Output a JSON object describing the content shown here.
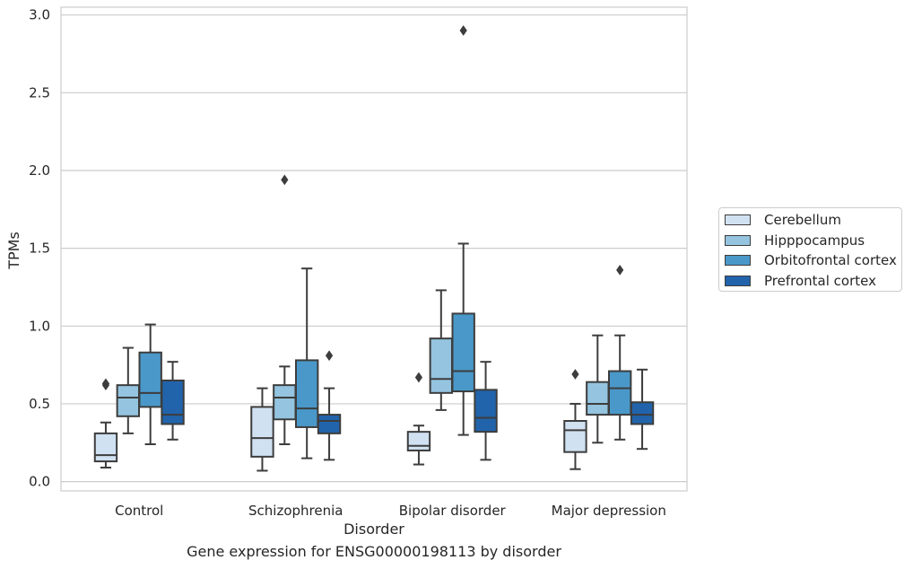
{
  "caption": "Gene expression for ENSG00000198113 by disorder",
  "chart_data": {
    "type": "box",
    "xlabel": "Disorder",
    "ylabel": "TPMs",
    "ylim": [
      -0.06,
      3.05
    ],
    "yticks": [
      "0.0",
      "0.5",
      "1.0",
      "1.5",
      "2.0",
      "2.5",
      "3.0"
    ],
    "grid": true,
    "legend_position": "right",
    "categories": [
      "Control",
      "Schizophrenia",
      "Bipolar disorder",
      "Major depression"
    ],
    "series": [
      {
        "name": "Cerebellum",
        "color": "#d0e1f2",
        "boxes": [
          {
            "whisker_low": 0.09,
            "q1": 0.13,
            "median": 0.17,
            "q3": 0.31,
            "whisker_high": 0.38,
            "outliers": [
              0.62,
              0.63
            ]
          },
          {
            "whisker_low": 0.07,
            "q1": 0.16,
            "median": 0.28,
            "q3": 0.48,
            "whisker_high": 0.6,
            "outliers": []
          },
          {
            "whisker_low": 0.11,
            "q1": 0.2,
            "median": 0.23,
            "q3": 0.32,
            "whisker_high": 0.36,
            "outliers": [
              0.67
            ]
          },
          {
            "whisker_low": 0.08,
            "q1": 0.19,
            "median": 0.33,
            "q3": 0.39,
            "whisker_high": 0.5,
            "outliers": [
              0.69
            ]
          }
        ]
      },
      {
        "name": "Hipppocampus",
        "color": "#94c4df",
        "boxes": [
          {
            "whisker_low": 0.31,
            "q1": 0.42,
            "median": 0.54,
            "q3": 0.62,
            "whisker_high": 0.86,
            "outliers": []
          },
          {
            "whisker_low": 0.24,
            "q1": 0.4,
            "median": 0.54,
            "q3": 0.62,
            "whisker_high": 0.74,
            "outliers": [
              1.94
            ]
          },
          {
            "whisker_low": 0.46,
            "q1": 0.57,
            "median": 0.66,
            "q3": 0.92,
            "whisker_high": 1.23,
            "outliers": []
          },
          {
            "whisker_low": 0.25,
            "q1": 0.43,
            "median": 0.5,
            "q3": 0.64,
            "whisker_high": 0.94,
            "outliers": []
          }
        ]
      },
      {
        "name": "Orbitofrontal cortex",
        "color": "#4a98c9",
        "boxes": [
          {
            "whisker_low": 0.24,
            "q1": 0.48,
            "median": 0.57,
            "q3": 0.83,
            "whisker_high": 1.01,
            "outliers": []
          },
          {
            "whisker_low": 0.15,
            "q1": 0.35,
            "median": 0.47,
            "q3": 0.78,
            "whisker_high": 1.37,
            "outliers": []
          },
          {
            "whisker_low": 0.3,
            "q1": 0.58,
            "median": 0.71,
            "q3": 1.08,
            "whisker_high": 1.53,
            "outliers": [
              2.9
            ]
          },
          {
            "whisker_low": 0.27,
            "q1": 0.43,
            "median": 0.6,
            "q3": 0.71,
            "whisker_high": 0.94,
            "outliers": [
              1.36
            ]
          }
        ]
      },
      {
        "name": "Prefrontal cortex",
        "color": "#2164ab",
        "boxes": [
          {
            "whisker_low": 0.27,
            "q1": 0.37,
            "median": 0.43,
            "q3": 0.65,
            "whisker_high": 0.77,
            "outliers": []
          },
          {
            "whisker_low": 0.14,
            "q1": 0.31,
            "median": 0.39,
            "q3": 0.43,
            "whisker_high": 0.6,
            "outliers": [
              0.81
            ]
          },
          {
            "whisker_low": 0.14,
            "q1": 0.32,
            "median": 0.41,
            "q3": 0.59,
            "whisker_high": 0.77,
            "outliers": []
          },
          {
            "whisker_low": 0.21,
            "q1": 0.37,
            "median": 0.43,
            "q3": 0.51,
            "whisker_high": 0.72,
            "outliers": []
          }
        ]
      }
    ]
  }
}
